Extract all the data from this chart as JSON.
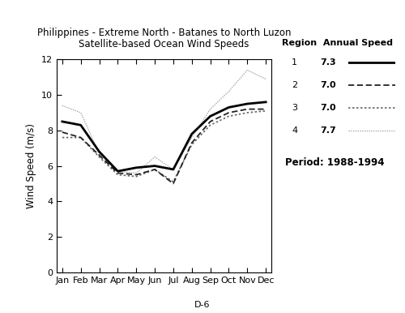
{
  "title_line1": "Philippines - Extreme North - Batanes to North Luzon",
  "title_line2": "Satellite-based Ocean Wind Speeds",
  "ylabel": "Wind Speed (m/s)",
  "months": [
    "Jan",
    "Feb",
    "Mar",
    "Apr",
    "May",
    "Jun",
    "Jul",
    "Aug",
    "Sep",
    "Oct",
    "Nov",
    "Dec"
  ],
  "ylim": [
    0,
    12
  ],
  "yticks": [
    0,
    2,
    4,
    6,
    8,
    10,
    12
  ],
  "region1": [
    8.5,
    8.3,
    6.8,
    5.7,
    5.9,
    6.0,
    5.8,
    7.8,
    8.8,
    9.3,
    9.5,
    9.6
  ],
  "region2": [
    7.9,
    7.6,
    6.6,
    5.6,
    5.5,
    5.8,
    5.0,
    7.3,
    8.5,
    9.0,
    9.2,
    9.2
  ],
  "region3": [
    7.6,
    7.6,
    6.5,
    5.5,
    5.4,
    5.8,
    5.1,
    7.2,
    8.3,
    8.8,
    9.0,
    9.1
  ],
  "region4": [
    9.4,
    9.0,
    6.7,
    5.7,
    5.6,
    6.5,
    5.8,
    7.6,
    9.2,
    10.2,
    11.4,
    10.9
  ],
  "region_labels": [
    "1",
    "2",
    "3",
    "4"
  ],
  "annual_speeds": [
    "7.3",
    "7.0",
    "7.0",
    "7.7"
  ],
  "period": "Period: 1988-1994",
  "footnote": "D-6",
  "legend_header": "Region  Annual Speed"
}
